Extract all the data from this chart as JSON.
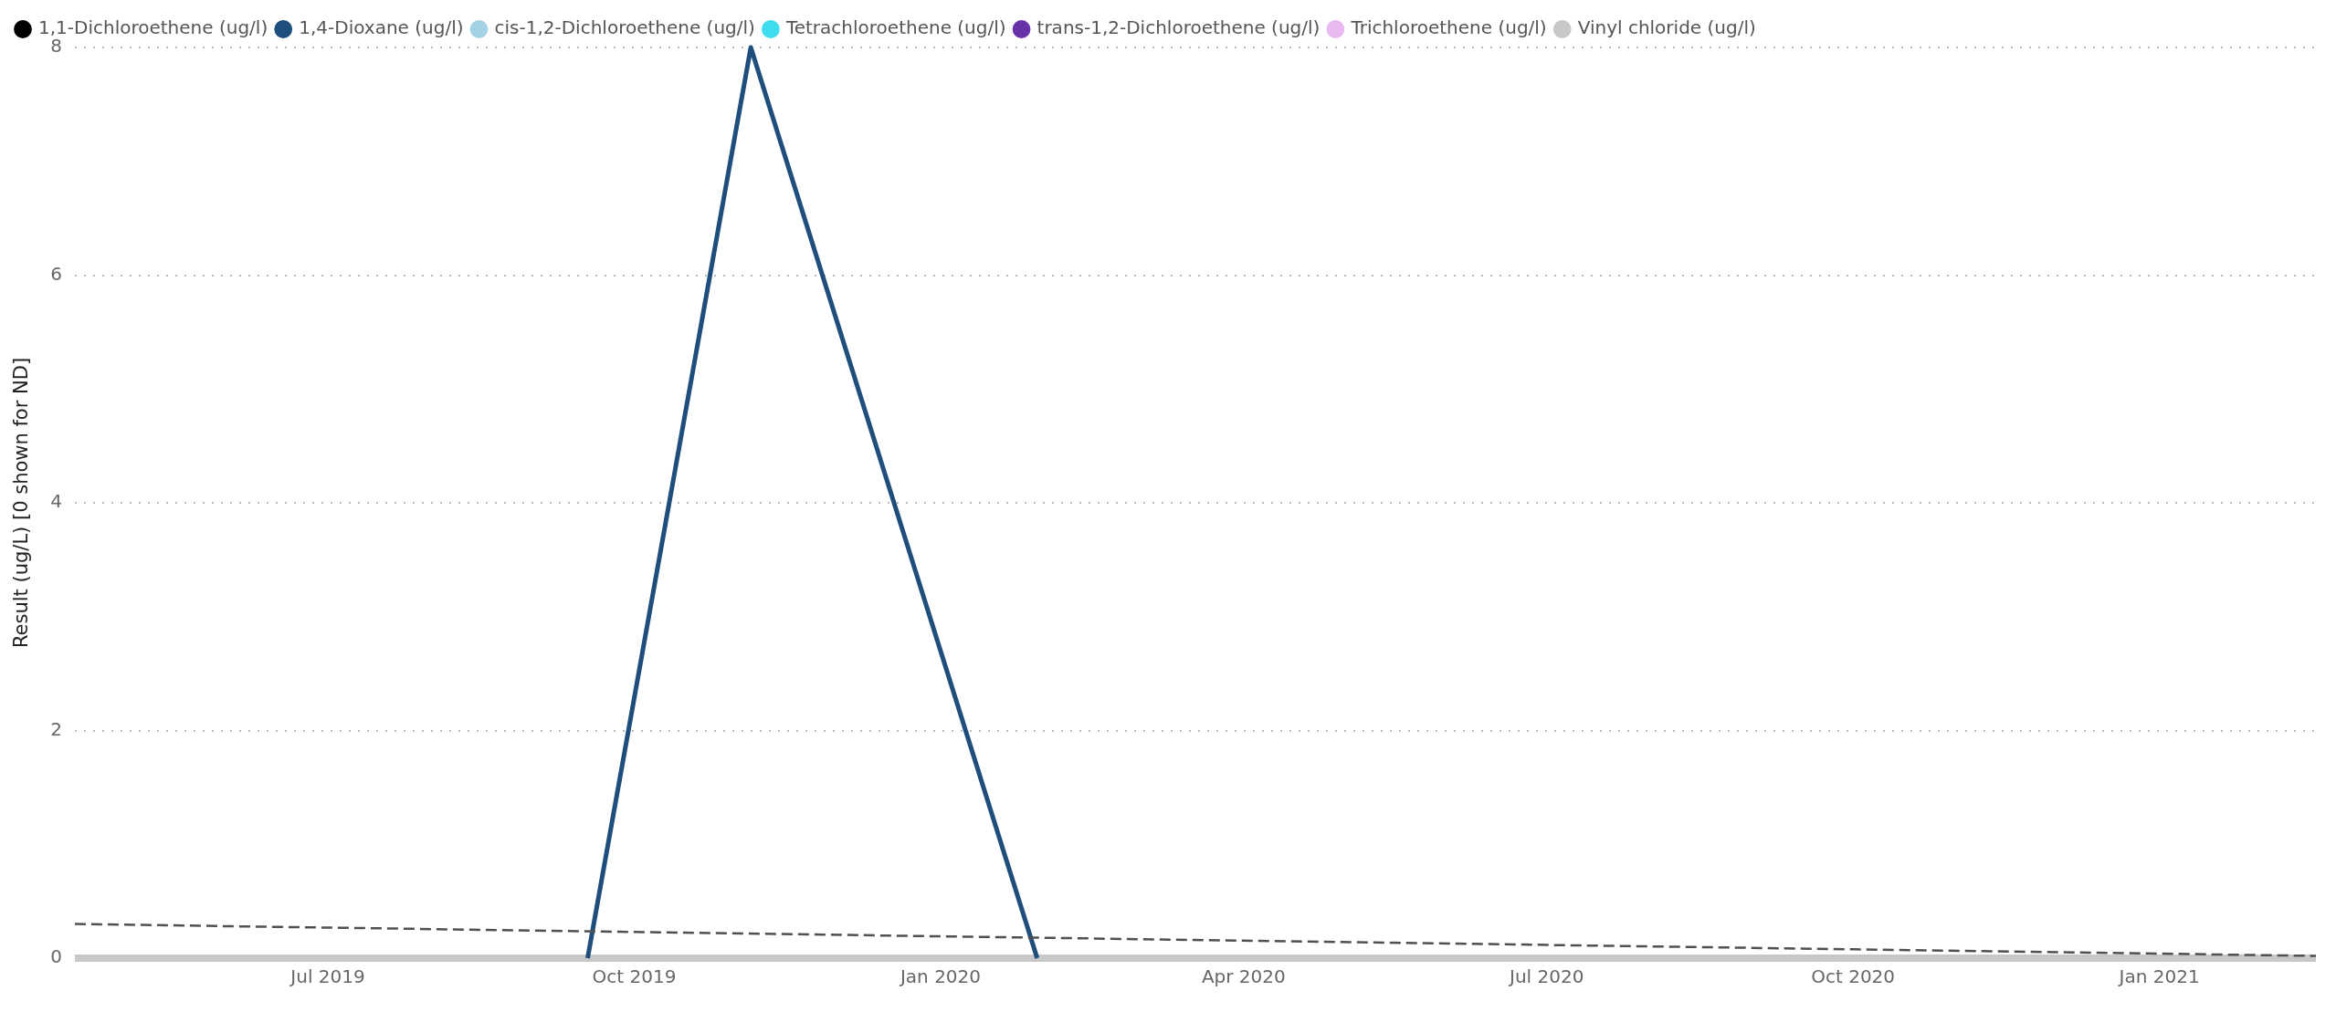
{
  "chart_data": {
    "type": "line",
    "ylabel": "Result (ug/L) [0 shown for ND]",
    "xlim": [
      "2019-04-16",
      "2021-02-17"
    ],
    "xticks": [
      {
        "value": "2019-07-01",
        "label": "Jul 2019"
      },
      {
        "value": "2019-10-01",
        "label": "Oct 2019"
      },
      {
        "value": "2020-01-01",
        "label": "Jan 2020"
      },
      {
        "value": "2020-04-01",
        "label": "Apr 2020"
      },
      {
        "value": "2020-07-01",
        "label": "Jul 2020"
      },
      {
        "value": "2020-10-01",
        "label": "Oct 2020"
      },
      {
        "value": "2021-01-01",
        "label": "Jan 2021"
      }
    ],
    "ylim": [
      0,
      8
    ],
    "yticks": [
      0,
      2,
      4,
      6,
      8
    ],
    "grid": "y",
    "legend": "top left",
    "marker": "none",
    "line_style": "solid",
    "series": [
      {
        "name": "1,1-Dichloroethene (ug/l)",
        "color": "#000000"
      },
      {
        "name": "1,4-Dioxane (ug/l)",
        "color": "#1f4e7d",
        "x": [
          "2019-09-17",
          "2019-11-05",
          "2020-01-30"
        ],
        "values": [
          0,
          8,
          0
        ]
      },
      {
        "name": "cis-1,2-Dichloroethene (ug/l)",
        "color": "#a3d3e3"
      },
      {
        "name": "Tetrachloroethene (ug/l)",
        "color": "#3ddcee"
      },
      {
        "name": "trans-1,2-Dichloroethene (ug/l)",
        "color": "#6a32a8"
      },
      {
        "name": "Trichloroethene (ug/l)",
        "color": "#e8b8f0"
      },
      {
        "name": "Vinyl chloride (ug/l)",
        "color": "#c8c8c8",
        "x": [
          "2019-04-16",
          "2021-02-17"
        ],
        "values": [
          0,
          0
        ]
      },
      {
        "color": "#505050",
        "line_style": "dashed",
        "x": [
          "2019-04-16",
          "2021-02-17"
        ],
        "values": [
          0.3,
          0.02
        ]
      }
    ]
  }
}
